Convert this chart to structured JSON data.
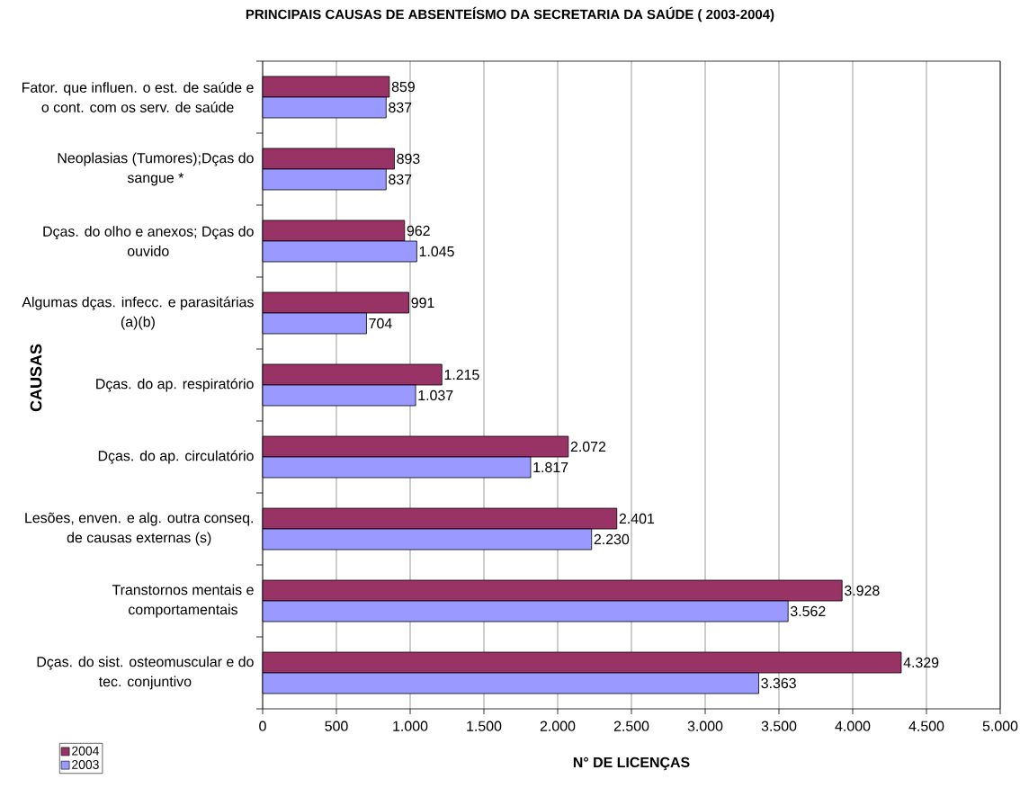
{
  "chart_data": {
    "type": "bar",
    "orientation": "horizontal",
    "title": "PRINCIPAIS CAUSAS DE ABSENTEÍSMO DA SECRETARIA DA SAÚDE ( 2003-2004)",
    "xlabel": "N° DE LICENÇAS",
    "ylabel": "CAUSAS",
    "categories": [
      "Fator. que influen. o est. de saúde e o cont. com os serv. de saúde",
      "Neoplasias (Tumores);Dças do sangue *",
      "Dças. do olho e anexos; Dças do ouvido",
      "Algumas dças. infecc. e parasitárias (a)(b)",
      "Dças. do ap. respiratório",
      "Dças. do ap. circulatório",
      "Lesões, enven. e alg. outra conseq. de causas externas (s)",
      "Transtornos mentais e comportamentais",
      "Dças. do sist. osteomuscular e do tec. conjuntivo"
    ],
    "series": [
      {
        "name": "2004",
        "color": "#993366",
        "values": [
          859,
          893,
          962,
          991,
          1215,
          2072,
          2401,
          3928,
          4329
        ],
        "value_labels": [
          "859",
          "893",
          "962",
          "991",
          "1.215",
          "2.072",
          "2.401",
          "3.928",
          "4.329"
        ]
      },
      {
        "name": "2003",
        "color": "#9999ff",
        "values": [
          837,
          837,
          1045,
          704,
          1037,
          1817,
          2230,
          3562,
          3363
        ],
        "value_labels": [
          "837",
          "837",
          "1.045",
          "704",
          "1.037",
          "1.817",
          "2.230",
          "3.562",
          "3.363"
        ]
      }
    ],
    "xlim": [
      0,
      5000
    ],
    "xticks": [
      0,
      500,
      {
        "value": 1000,
        "label": "1.000"
      },
      {
        "value": 1500,
        "label": "1.500"
      },
      {
        "value": 2000,
        "label": "2.000"
      },
      {
        "value": 2500,
        "label": "2.500"
      },
      {
        "value": 3000,
        "label": "3.000"
      },
      {
        "value": 3500,
        "label": "3.500"
      },
      {
        "value": 4000,
        "label": "4.000"
      },
      {
        "value": 4500,
        "label": "4.500"
      },
      {
        "value": 5000,
        "label": "5.000"
      }
    ],
    "grid": "x",
    "legend": "bottom left"
  }
}
